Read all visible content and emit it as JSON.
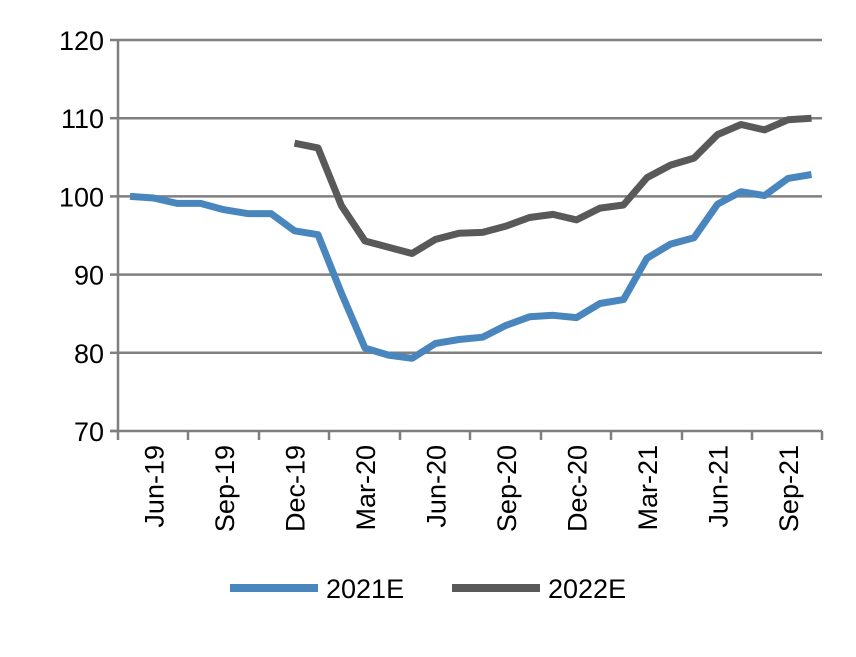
{
  "chart_data": {
    "type": "line",
    "x": [
      "May-19",
      "Jun-19",
      "Jul-19",
      "Aug-19",
      "Sep-19",
      "Oct-19",
      "Nov-19",
      "Dec-19",
      "Jan-20",
      "Feb-20",
      "Mar-20",
      "Apr-20",
      "May-20",
      "Jun-20",
      "Jul-20",
      "Aug-20",
      "Sep-20",
      "Oct-20",
      "Nov-20",
      "Dec-20",
      "Jan-21",
      "Feb-21",
      "Mar-21",
      "Apr-21",
      "May-21",
      "Jun-21",
      "Jul-21",
      "Aug-21",
      "Sep-21",
      "Oct-21",
      "Nov-21"
    ],
    "x_tick_labels": [
      "Jun-19",
      "Sep-19",
      "Dec-19",
      "Mar-20",
      "Jun-20",
      "Sep-20",
      "Dec-20",
      "Mar-21",
      "Jun-21",
      "Sep-21"
    ],
    "y_tick_labels": [
      "120",
      "110",
      "100",
      "90",
      "80",
      "70"
    ],
    "ylim": [
      70,
      120
    ],
    "y_ticks": [
      70,
      80,
      90,
      100,
      110,
      120
    ],
    "grid": "horizontal",
    "legend_position": "bottom",
    "series": [
      {
        "name": "2021E",
        "color": "#4A86BE",
        "values": [
          100.0,
          99.8,
          99.1,
          99.1,
          98.3,
          97.8,
          97.8,
          95.6,
          95.1,
          87.6,
          80.6,
          79.7,
          79.3,
          81.2,
          81.7,
          82.0,
          83.5,
          84.6,
          84.8,
          84.5,
          86.3,
          86.8,
          92.1,
          93.9,
          94.7,
          99.0,
          100.6,
          100.1,
          102.3,
          102.8,
          null
        ]
      },
      {
        "name": "2022E",
        "color": "#595959",
        "values": [
          null,
          null,
          null,
          null,
          null,
          null,
          null,
          106.8,
          106.2,
          98.8,
          94.3,
          93.5,
          92.7,
          94.5,
          95.3,
          95.4,
          96.2,
          97.3,
          97.7,
          97.0,
          98.5,
          98.9,
          102.4,
          104.0,
          104.9,
          107.9,
          109.2,
          108.5,
          109.8,
          110.0,
          null
        ]
      }
    ]
  }
}
